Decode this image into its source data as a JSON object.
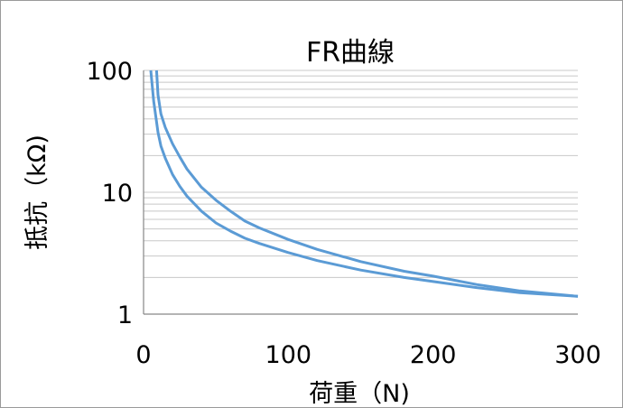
{
  "chart_data": {
    "type": "line",
    "title": "FR曲線",
    "xlabel": "荷重（N)",
    "ylabel": "抵抗（kΩ)",
    "xlim": [
      0,
      300
    ],
    "ylim": [
      1,
      100
    ],
    "yscale": "log",
    "x_ticks": [
      "0",
      "100",
      "200",
      "300"
    ],
    "y_ticks": [
      "1",
      "10",
      "100"
    ],
    "grid": true,
    "legend": "none",
    "series_color": "#5b9bd5",
    "series": [
      {
        "x": [
          5,
          7,
          10,
          12,
          15,
          20,
          25,
          30,
          40,
          50,
          60,
          70,
          80,
          100,
          120,
          150,
          180,
          200,
          230,
          260,
          300
        ],
        "values": [
          100,
          56,
          31,
          24,
          19,
          14,
          11.2,
          9.3,
          7.0,
          5.6,
          4.8,
          4.2,
          3.8,
          3.2,
          2.75,
          2.3,
          2.0,
          1.85,
          1.65,
          1.5,
          1.4
        ]
      },
      {
        "x": [
          9,
          10,
          12,
          15,
          20,
          25,
          30,
          40,
          50,
          60,
          70,
          80,
          100,
          120,
          150,
          180,
          200,
          230,
          260,
          300
        ],
        "values": [
          100,
          63,
          44,
          34,
          25,
          19.5,
          15.5,
          11,
          8.6,
          7.0,
          5.8,
          5.1,
          4.1,
          3.4,
          2.7,
          2.25,
          2.05,
          1.75,
          1.55,
          1.4
        ]
      }
    ]
  }
}
